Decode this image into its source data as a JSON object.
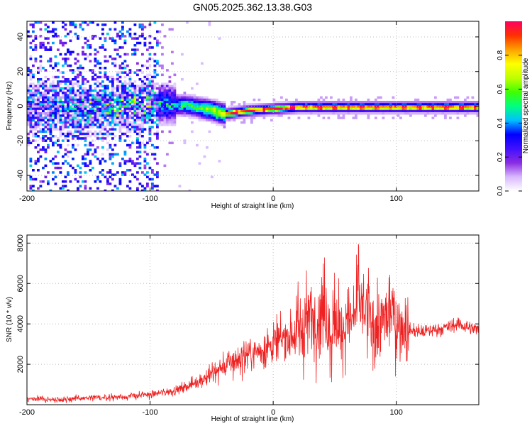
{
  "title": "GN05.2025.362.13.38.G03",
  "chart_data": [
    {
      "type": "heatmap",
      "xlabel": "Height of straight line (km)",
      "ylabel": "Frequency (Hz)",
      "xlim": [
        -200,
        167
      ],
      "ylim": [
        -49,
        49
      ],
      "xticks": [
        -200,
        -100,
        0,
        100
      ],
      "yticks": [
        -40,
        -20,
        0,
        20,
        40
      ],
      "grid": true,
      "colorbar": {
        "label": "Normalized spectral amplitude",
        "range": [
          0,
          1
        ],
        "ticks": [
          "0.0",
          "0.2",
          "0.4",
          "0.6",
          "0.8"
        ],
        "colors": [
          "#ffffff",
          "#d8b8ff",
          "#8a2be2",
          "#4010ff",
          "#0000ff",
          "#00c0ff",
          "#00ff80",
          "#40ff00",
          "#c0ff00",
          "#ffff00",
          "#ffa000",
          "#ff3000",
          "#ff0060"
        ]
      },
      "ridge": [
        {
          "x": -115,
          "y": 0
        },
        {
          "x": -100,
          "y": 2
        },
        {
          "x": -70,
          "y": 1
        },
        {
          "x": -50,
          "y": -2
        },
        {
          "x": -40,
          "y": -4
        },
        {
          "x": -20,
          "y": -2
        },
        {
          "x": 0,
          "y": -1
        },
        {
          "x": 20,
          "y": 0
        },
        {
          "x": 60,
          "y": 0
        },
        {
          "x": 100,
          "y": 0
        },
        {
          "x": 167,
          "y": 0
        }
      ]
    },
    {
      "type": "line",
      "xlabel": "Height of straight line (km)",
      "ylabel": "SNR (10 * v/v)",
      "xlim": [
        -200,
        167
      ],
      "ylim": [
        0,
        8400
      ],
      "xticks": [
        -200,
        -100,
        0,
        100
      ],
      "yticks": [
        2000,
        4000,
        6000,
        8000
      ],
      "grid": true,
      "color": "#ee2222",
      "series": [
        {
          "name": "SNR",
          "x": [
            -200,
            -180,
            -160,
            -140,
            -120,
            -100,
            -90,
            -80,
            -70,
            -60,
            -50,
            -40,
            -30,
            -20,
            -10,
            0,
            10,
            20,
            25,
            30,
            35,
            40,
            42,
            45,
            50,
            55,
            60,
            65,
            70,
            75,
            80,
            85,
            90,
            95,
            100,
            110,
            120,
            130,
            140,
            150,
            160,
            167
          ],
          "y": [
            300,
            250,
            300,
            350,
            400,
            500,
            600,
            700,
            900,
            1200,
            1500,
            1900,
            2200,
            2500,
            2700,
            3000,
            3300,
            3700,
            4000,
            4300,
            4200,
            4600,
            5400,
            4200,
            3800,
            3500,
            3900,
            4300,
            5000,
            4600,
            4000,
            3600,
            4200,
            4800,
            4100,
            3700,
            3600,
            3700,
            3800,
            4000,
            3800,
            3700
          ]
        }
      ]
    }
  ]
}
